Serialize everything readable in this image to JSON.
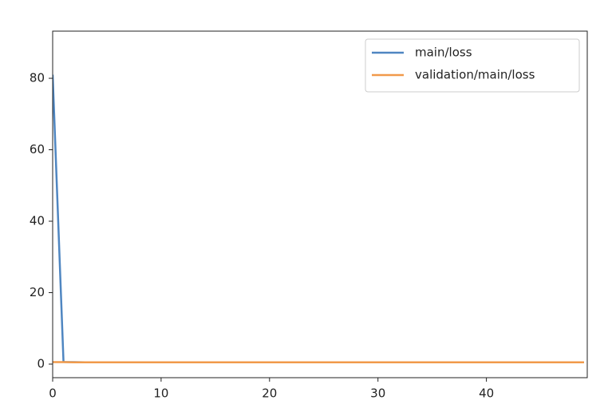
{
  "chart_data": {
    "type": "line",
    "x": [
      0,
      1,
      2,
      3,
      4,
      5,
      6,
      7,
      8,
      9,
      10,
      11,
      12,
      13,
      14,
      15,
      16,
      17,
      18,
      19,
      20,
      21,
      22,
      23,
      24,
      25,
      26,
      27,
      28,
      29,
      30,
      31,
      32,
      33,
      34,
      35,
      36,
      37,
      38,
      39,
      40,
      41,
      42,
      43,
      44,
      45,
      46,
      47,
      48,
      49
    ],
    "series": [
      {
        "name": "main/loss",
        "color": "#4f86c1",
        "values": [
          81,
          0.6,
          0.55,
          0.5,
          0.5,
          0.5,
          0.5,
          0.5,
          0.5,
          0.5,
          0.5,
          0.5,
          0.5,
          0.5,
          0.5,
          0.5,
          0.5,
          0.5,
          0.5,
          0.5,
          0.5,
          0.5,
          0.5,
          0.5,
          0.5,
          0.5,
          0.5,
          0.5,
          0.5,
          0.5,
          0.5,
          0.5,
          0.5,
          0.5,
          0.5,
          0.5,
          0.5,
          0.5,
          0.5,
          0.5,
          0.5,
          0.5,
          0.5,
          0.5,
          0.5,
          0.5,
          0.5,
          0.5,
          0.5,
          0.5
        ]
      },
      {
        "name": "validation/main/loss",
        "color": "#f19a4a",
        "values": [
          0.55,
          0.55,
          0.5,
          0.5,
          0.5,
          0.5,
          0.5,
          0.5,
          0.5,
          0.5,
          0.5,
          0.5,
          0.5,
          0.5,
          0.5,
          0.5,
          0.5,
          0.5,
          0.5,
          0.5,
          0.5,
          0.5,
          0.5,
          0.5,
          0.5,
          0.5,
          0.5,
          0.5,
          0.5,
          0.5,
          0.5,
          0.5,
          0.5,
          0.5,
          0.5,
          0.5,
          0.5,
          0.5,
          0.5,
          0.5,
          0.5,
          0.5,
          0.5,
          0.5,
          0.5,
          0.5,
          0.5,
          0.5,
          0.5,
          0.5
        ]
      }
    ],
    "xlim": [
      0,
      49.3
    ],
    "xticks": [
      0,
      10,
      20,
      30,
      40
    ],
    "ylim": [
      -3.8,
      93.2
    ],
    "yticks": [
      0,
      20,
      40,
      60,
      80
    ],
    "grid": false,
    "legend": "upper-right"
  }
}
